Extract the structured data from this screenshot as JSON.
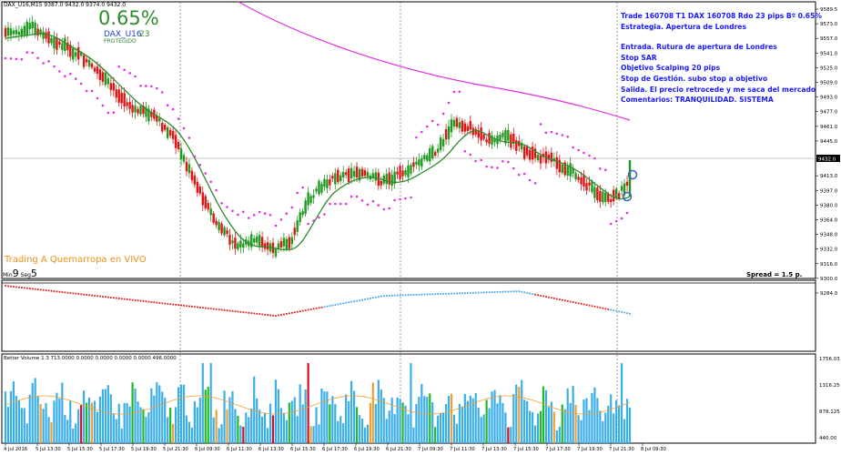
{
  "header": {
    "ohlc_text": "DAX_U16,M15  9387.0 9432.0 9374.0 9432.0",
    "percent": "0.65%",
    "symbol": "DAX_U16",
    "pips": "23",
    "status": "PROTEGIDO"
  },
  "notes": {
    "line1": "Trade 160708 T1 DAX 160708 Rdo 23 pips Bº 0.65%",
    "line2": "Estrategia. Apertura de Londres",
    "line3": "Entrada. Rutura de apertura de Londres",
    "line4": "Stop SAR",
    "line5": "Objetivo  Scalping 20 pips",
    "line6": "Stop de Gestión. subo stop a objetivo",
    "line7": "Salida. El precio retrocede y me saca del mercado",
    "line8": "Comentarios: TRANQUILIDAD. SISTEMA"
  },
  "overlay": {
    "live_label": "Trading A Quemarropa en VIVO",
    "timer_min_label": "Min",
    "timer_min": "9",
    "timer_sec_label": "Seg",
    "timer_sec": "5",
    "spread": "Spread = 1.5 p."
  },
  "price_axis": {
    "labels": [
      "9589.5",
      "9573.0",
      "9557.0",
      "9541.0",
      "9525.0",
      "9509.0",
      "9493.0",
      "9477.0",
      "9461.0",
      "9445.0",
      "9432.0",
      "9413.0",
      "9397.0",
      "9380.0",
      "9364.0",
      "9348.0",
      "9332.0",
      "9316.0",
      "9300.0",
      "9284.0"
    ],
    "current": "9432.0"
  },
  "volume_panel": {
    "header": "Better Volume 1.3 713.0000 0.0000 0.0000 0.0000 0.0000 496.0000",
    "axis_labels": [
      "1756.03",
      "1316.25",
      "878.125",
      "440.00"
    ]
  },
  "time_axis": {
    "labels": [
      "4 Jul 2016",
      "5 Jul 13:30",
      "5 Jul 15:30",
      "5 Jul 17:30",
      "5 Jul 19:30",
      "5 Jul 21:30",
      "6 Jul 09:30",
      "6 Jul 11:30",
      "6 Jul 13:30",
      "6 Jul 15:30",
      "6 Jul 17:30",
      "6 Jul 19:30",
      "6 Jul 21:30",
      "7 Jul 09:30",
      "7 Jul 11:30",
      "7 Jul 13:30",
      "7 Jul 15:30",
      "7 Jul 17:30",
      "7 Jul 19:30",
      "7 Jul 21:30",
      "8 Jul 09:30"
    ]
  },
  "colors": {
    "bull": "#1f9a1f",
    "bear": "#e01414",
    "ma_fast": "#2e8b2e",
    "ma_slow": "#e030e0",
    "sar": "#e030e0",
    "vol_blue": "#3aaee8",
    "vol_green": "#22b822",
    "vol_red": "#d01020",
    "vol_avg": "#f0a030",
    "text_blue": "#1a1aff"
  }
}
